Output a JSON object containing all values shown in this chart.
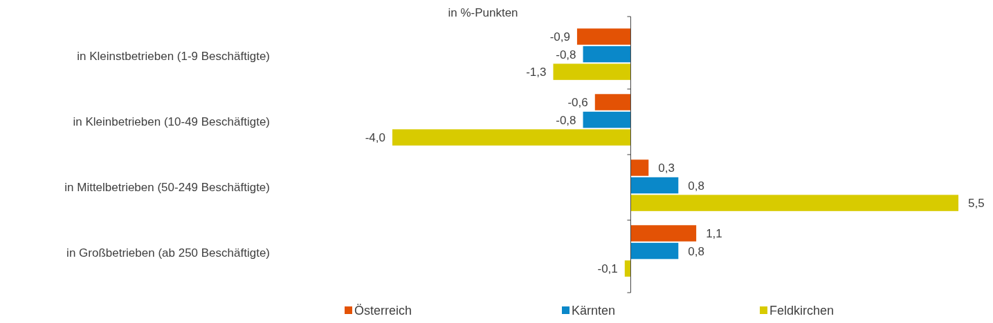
{
  "chart_data": {
    "type": "bar",
    "orientation": "horizontal",
    "title": "in %-Punkten",
    "categories": [
      "in Kleinstbetrieben (1-9 Beschäftigte)",
      "in Kleinbetrieben (10-49 Beschäftigte)",
      "in Mittelbetrieben (50-249 Beschäftigte)",
      "in Großbetrieben (ab 250 Beschäftigte)"
    ],
    "series": [
      {
        "name": "Österreich",
        "color": "#e35205",
        "values": [
          -0.9,
          -0.6,
          0.3,
          1.1
        ],
        "value_labels": [
          "-0,9",
          "-0,6",
          "0,3",
          "1,1"
        ]
      },
      {
        "name": "Kärnten",
        "color": "#0a88c9",
        "values": [
          -0.8,
          -0.8,
          0.8,
          0.8
        ],
        "value_labels": [
          "-0,8",
          "-0,8",
          "0,8",
          "0,8"
        ]
      },
      {
        "name": "Feldkirchen",
        "color": "#d8cb00",
        "values": [
          -1.3,
          -4.0,
          5.5,
          -0.1
        ],
        "value_labels": [
          "-1,3",
          "-4,0",
          "5,5",
          "-0,1"
        ]
      }
    ],
    "tick_labels": "y",
    "legend": "bottom"
  }
}
